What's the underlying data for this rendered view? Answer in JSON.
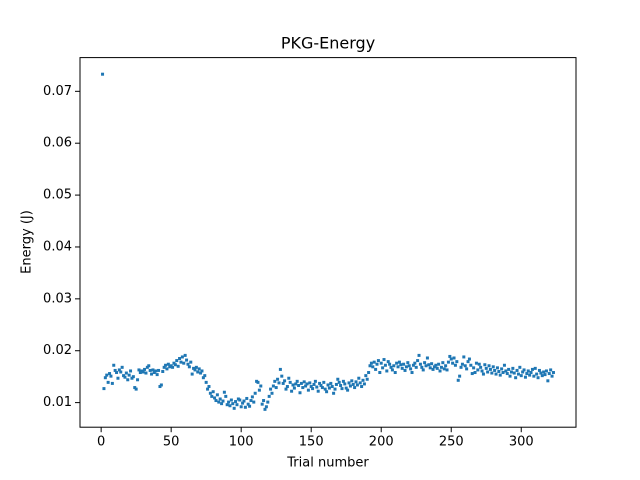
{
  "chart_data": {
    "type": "scatter",
    "title": "PKG-Energy",
    "x_label": "Trial number",
    "y_label": "Energy (J)",
    "color": "#1f77b4",
    "xlim": [
      -15.1,
      339.1
    ],
    "ylim": [
      0.00526,
      0.0765
    ],
    "xticks": [
      0,
      50,
      100,
      150,
      200,
      250,
      300
    ],
    "yticks": [
      0.01,
      0.02,
      0.03,
      0.04,
      0.05,
      0.06,
      0.07
    ],
    "x": [
      1,
      2,
      3,
      4,
      5,
      6,
      7,
      8,
      9,
      10,
      11,
      12,
      13,
      14,
      15,
      16,
      17,
      18,
      19,
      20,
      21,
      22,
      23,
      24,
      25,
      26,
      27,
      28,
      29,
      30,
      31,
      32,
      33,
      34,
      35,
      36,
      37,
      38,
      39,
      40,
      41,
      42,
      43,
      44,
      45,
      46,
      47,
      48,
      49,
      50,
      51,
      52,
      53,
      54,
      55,
      56,
      57,
      58,
      59,
      60,
      61,
      62,
      63,
      64,
      65,
      66,
      67,
      68,
      69,
      70,
      71,
      72,
      73,
      74,
      75,
      76,
      77,
      78,
      79,
      80,
      81,
      82,
      83,
      84,
      85,
      86,
      87,
      88,
      89,
      90,
      91,
      92,
      93,
      94,
      95,
      96,
      97,
      98,
      99,
      100,
      101,
      102,
      103,
      104,
      105,
      106,
      107,
      108,
      109,
      110,
      111,
      112,
      113,
      114,
      115,
      116,
      117,
      118,
      119,
      120,
      121,
      122,
      123,
      124,
      125,
      126,
      127,
      128,
      129,
      130,
      131,
      132,
      133,
      134,
      135,
      136,
      137,
      138,
      139,
      140,
      141,
      142,
      143,
      144,
      145,
      146,
      147,
      148,
      149,
      150,
      151,
      152,
      153,
      154,
      155,
      156,
      157,
      158,
      159,
      160,
      161,
      162,
      163,
      164,
      165,
      166,
      167,
      168,
      169,
      170,
      171,
      172,
      173,
      174,
      175,
      176,
      177,
      178,
      179,
      180,
      181,
      182,
      183,
      184,
      185,
      186,
      187,
      188,
      189,
      190,
      191,
      192,
      193,
      194,
      195,
      196,
      197,
      198,
      199,
      200,
      201,
      202,
      203,
      204,
      205,
      206,
      207,
      208,
      209,
      210,
      211,
      212,
      213,
      214,
      215,
      216,
      217,
      218,
      219,
      220,
      221,
      222,
      223,
      224,
      225,
      226,
      227,
      228,
      229,
      230,
      231,
      232,
      233,
      234,
      235,
      236,
      237,
      238,
      239,
      240,
      241,
      242,
      243,
      244,
      245,
      246,
      247,
      248,
      249,
      250,
      251,
      252,
      253,
      254,
      255,
      256,
      257,
      258,
      259,
      260,
      261,
      262,
      263,
      264,
      265,
      266,
      267,
      268,
      269,
      270,
      271,
      272,
      273,
      274,
      275,
      276,
      277,
      278,
      279,
      280,
      281,
      282,
      283,
      284,
      285,
      286,
      287,
      288,
      289,
      290,
      291,
      292,
      293,
      294,
      295,
      296,
      297,
      298,
      299,
      300,
      301,
      302,
      303,
      304,
      305,
      306,
      307,
      308,
      309,
      310,
      311,
      312,
      313,
      314,
      315,
      316,
      317,
      318,
      319,
      320,
      321,
      322,
      323
    ],
    "values": [
      0.0733,
      0.0127,
      0.0148,
      0.0153,
      0.0139,
      0.0156,
      0.0151,
      0.0137,
      0.0172,
      0.0162,
      0.0158,
      0.0147,
      0.0163,
      0.0159,
      0.0168,
      0.0152,
      0.0149,
      0.0157,
      0.0144,
      0.0153,
      0.0161,
      0.0147,
      0.015,
      0.0129,
      0.0126,
      0.0144,
      0.0163,
      0.0158,
      0.0161,
      0.0159,
      0.0164,
      0.0157,
      0.0168,
      0.0171,
      0.0162,
      0.0155,
      0.0163,
      0.0158,
      0.0161,
      0.0154,
      0.0162,
      0.0131,
      0.0134,
      0.016,
      0.0168,
      0.0172,
      0.0165,
      0.0174,
      0.0169,
      0.0171,
      0.0168,
      0.0176,
      0.0173,
      0.0181,
      0.017,
      0.0185,
      0.0178,
      0.0188,
      0.0176,
      0.0191,
      0.0182,
      0.0174,
      0.0169,
      0.0178,
      0.0155,
      0.0166,
      0.0163,
      0.0168,
      0.0159,
      0.0165,
      0.0157,
      0.0161,
      0.0148,
      0.0152,
      0.0139,
      0.0126,
      0.0131,
      0.0118,
      0.0112,
      0.0121,
      0.0109,
      0.0104,
      0.0115,
      0.0101,
      0.0107,
      0.0098,
      0.0103,
      0.012,
      0.0112,
      0.0096,
      0.0101,
      0.0094,
      0.0105,
      0.0098,
      0.0089,
      0.0102,
      0.0096,
      0.0107,
      0.0105,
      0.0092,
      0.0099,
      0.0103,
      0.0091,
      0.0108,
      0.0097,
      0.0093,
      0.0104,
      0.0111,
      0.0101,
      0.0118,
      0.0141,
      0.0139,
      0.0124,
      0.0132,
      0.0097,
      0.0104,
      0.0087,
      0.0092,
      0.0101,
      0.0112,
      0.0126,
      0.0118,
      0.0132,
      0.0141,
      0.0129,
      0.0145,
      0.0138,
      0.0164,
      0.0151,
      0.0137,
      0.0142,
      0.0126,
      0.0131,
      0.0147,
      0.0139,
      0.0122,
      0.0134,
      0.0128,
      0.0136,
      0.0141,
      0.0133,
      0.0119,
      0.0137,
      0.0129,
      0.014,
      0.0132,
      0.0136,
      0.0124,
      0.0138,
      0.0131,
      0.0127,
      0.0135,
      0.0141,
      0.013,
      0.0122,
      0.0137,
      0.0133,
      0.0129,
      0.0139,
      0.0126,
      0.0121,
      0.0134,
      0.0128,
      0.0137,
      0.0131,
      0.0118,
      0.0126,
      0.0135,
      0.0145,
      0.0139,
      0.0133,
      0.0127,
      0.0141,
      0.0136,
      0.0128,
      0.0124,
      0.0138,
      0.0132,
      0.0142,
      0.0135,
      0.0129,
      0.014,
      0.0134,
      0.0147,
      0.0138,
      0.0131,
      0.0143,
      0.0136,
      0.0152,
      0.0145,
      0.0158,
      0.0171,
      0.0176,
      0.0169,
      0.0178,
      0.0164,
      0.0174,
      0.0181,
      0.0158,
      0.0176,
      0.0167,
      0.0183,
      0.0172,
      0.0161,
      0.0179,
      0.0174,
      0.0168,
      0.0163,
      0.0171,
      0.0158,
      0.0176,
      0.0169,
      0.0178,
      0.0173,
      0.0166,
      0.0174,
      0.0162,
      0.0169,
      0.0177,
      0.0171,
      0.0165,
      0.0158,
      0.0172,
      0.0176,
      0.0168,
      0.0181,
      0.0191,
      0.0174,
      0.0168,
      0.0163,
      0.0177,
      0.0171,
      0.0186,
      0.0173,
      0.0167,
      0.0175,
      0.0164,
      0.0169,
      0.0172,
      0.0166,
      0.0174,
      0.0161,
      0.0168,
      0.0177,
      0.0165,
      0.0171,
      0.0163,
      0.0178,
      0.0189,
      0.0184,
      0.0176,
      0.0186,
      0.0172,
      0.0179,
      0.0143,
      0.0151,
      0.0168,
      0.0174,
      0.0188,
      0.0171,
      0.0165,
      0.0179,
      0.0184,
      0.0172,
      0.0156,
      0.0167,
      0.0158,
      0.0176,
      0.0163,
      0.0174,
      0.0168,
      0.0161,
      0.0155,
      0.0173,
      0.0166,
      0.0159,
      0.0171,
      0.0164,
      0.0157,
      0.0169,
      0.0162,
      0.0155,
      0.0167,
      0.016,
      0.0153,
      0.0165,
      0.0158,
      0.0172,
      0.0161,
      0.0156,
      0.0164,
      0.0151,
      0.0159,
      0.0166,
      0.0157,
      0.0148,
      0.0162,
      0.0155,
      0.0168,
      0.0152,
      0.0159,
      0.0163,
      0.0149,
      0.0156,
      0.0161,
      0.0153,
      0.0158,
      0.0164,
      0.0151,
      0.0166,
      0.0155,
      0.0148,
      0.0162,
      0.0157,
      0.0152,
      0.0159,
      0.0154,
      0.0161,
      0.0142,
      0.0156,
      0.0163,
      0.0151,
      0.0158
    ]
  }
}
